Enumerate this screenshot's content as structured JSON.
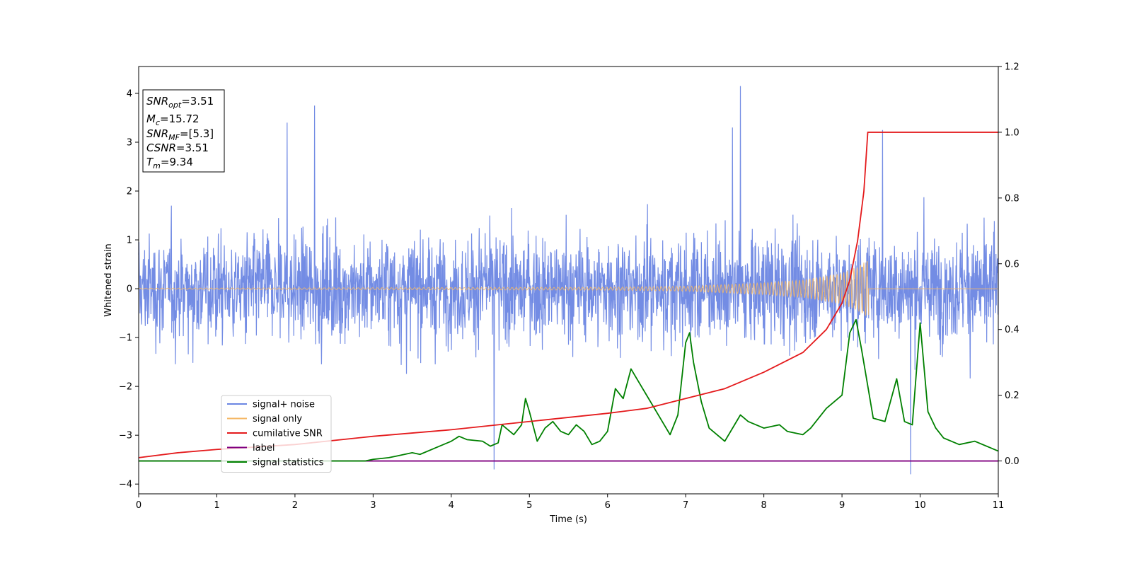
{
  "chart_data": {
    "type": "line",
    "xlabel": "Time (s)",
    "ylabel": "Whitened strain",
    "xlim": [
      0,
      11
    ],
    "ylim_left": [
      -4.2,
      4.55
    ],
    "ylim_right": [
      -0.1,
      1.2
    ],
    "x_ticks": [
      "0",
      "1",
      "2",
      "3",
      "4",
      "5",
      "6",
      "7",
      "8",
      "9",
      "10",
      "11"
    ],
    "y_ticks_left": [
      "4",
      "3",
      "2",
      "1",
      "0",
      "−1",
      "−2",
      "−3",
      "−4"
    ],
    "y_ticks_right": [
      "1.2",
      "1.0",
      "0.8",
      "0.6",
      "0.4",
      "0.2",
      "0.0"
    ],
    "grid": false,
    "legend_position": "lower-left",
    "annotation": {
      "lines": [
        {
          "sym": "SNR",
          "sub": "opt",
          "val": "=3.51"
        },
        {
          "sym": "M",
          "sub": "c",
          "val": "=15.72"
        },
        {
          "sym": "SNR",
          "sub": "MF",
          "val": "=[5.3]"
        },
        {
          "sym": "CSNR",
          "sub": "",
          "val": "=3.51"
        },
        {
          "sym": "T",
          "sub": "m",
          "val": "=9.34"
        }
      ]
    },
    "series": [
      {
        "name": "signal+ noise",
        "color": "#6b86e3",
        "axis": "left",
        "typical_range": [
          -1.8,
          1.8
        ],
        "notable_peaks": [
          [
            1.9,
            3.4
          ],
          [
            2.25,
            3.75
          ],
          [
            7.7,
            4.15
          ],
          [
            7.6,
            3.3
          ],
          [
            9.52,
            3.25
          ],
          [
            4.55,
            -3.7
          ],
          [
            9.88,
            -3.8
          ]
        ]
      },
      {
        "name": "signal only",
        "color": "#f5b766",
        "axis": "left",
        "envelope": [
          [
            0,
            0.01
          ],
          [
            6,
            0.03
          ],
          [
            7,
            0.05
          ],
          [
            8,
            0.12
          ],
          [
            8.5,
            0.18
          ],
          [
            9,
            0.32
          ],
          [
            9.2,
            0.45
          ],
          [
            9.34,
            0.6
          ]
        ]
      },
      {
        "name": "cumilative SNR",
        "color": "#e41a1c",
        "axis": "right",
        "points": [
          [
            0,
            0.01
          ],
          [
            0.5,
            0.025
          ],
          [
            1,
            0.035
          ],
          [
            2,
            0.05
          ],
          [
            3,
            0.075
          ],
          [
            4,
            0.095
          ],
          [
            5,
            0.12
          ],
          [
            6,
            0.145
          ],
          [
            6.5,
            0.16
          ],
          [
            7,
            0.19
          ],
          [
            7.5,
            0.22
          ],
          [
            8,
            0.27
          ],
          [
            8.5,
            0.33
          ],
          [
            8.8,
            0.4
          ],
          [
            9,
            0.48
          ],
          [
            9.1,
            0.55
          ],
          [
            9.2,
            0.67
          ],
          [
            9.28,
            0.82
          ],
          [
            9.33,
            1.0
          ],
          [
            11,
            1.0
          ]
        ]
      },
      {
        "name": "label",
        "color": "#800080",
        "axis": "right",
        "points": [
          [
            0,
            0.0
          ],
          [
            11,
            0.0
          ]
        ]
      },
      {
        "name": "signal statistics",
        "color": "#008000",
        "axis": "right",
        "points": [
          [
            0,
            0.0
          ],
          [
            2.5,
            0.0
          ],
          [
            2.9,
            0.0
          ],
          [
            3.0,
            0.005
          ],
          [
            3.2,
            0.01
          ],
          [
            3.3,
            0.015
          ],
          [
            3.5,
            0.025
          ],
          [
            3.6,
            0.02
          ],
          [
            3.8,
            0.04
          ],
          [
            4.0,
            0.06
          ],
          [
            4.1,
            0.075
          ],
          [
            4.2,
            0.065
          ],
          [
            4.4,
            0.06
          ],
          [
            4.5,
            0.045
          ],
          [
            4.6,
            0.055
          ],
          [
            4.65,
            0.11
          ],
          [
            4.8,
            0.08
          ],
          [
            4.9,
            0.11
          ],
          [
            4.95,
            0.19
          ],
          [
            5.0,
            0.15
          ],
          [
            5.1,
            0.06
          ],
          [
            5.2,
            0.1
          ],
          [
            5.3,
            0.12
          ],
          [
            5.4,
            0.09
          ],
          [
            5.5,
            0.08
          ],
          [
            5.6,
            0.11
          ],
          [
            5.7,
            0.09
          ],
          [
            5.8,
            0.05
          ],
          [
            5.9,
            0.06
          ],
          [
            6.0,
            0.09
          ],
          [
            6.1,
            0.22
          ],
          [
            6.2,
            0.19
          ],
          [
            6.3,
            0.28
          ],
          [
            6.4,
            0.24
          ],
          [
            6.5,
            0.2
          ],
          [
            6.6,
            0.16
          ],
          [
            6.7,
            0.12
          ],
          [
            6.8,
            0.08
          ],
          [
            6.9,
            0.14
          ],
          [
            7.0,
            0.36
          ],
          [
            7.05,
            0.39
          ],
          [
            7.1,
            0.3
          ],
          [
            7.2,
            0.18
          ],
          [
            7.3,
            0.1
          ],
          [
            7.5,
            0.06
          ],
          [
            7.7,
            0.14
          ],
          [
            7.8,
            0.12
          ],
          [
            8.0,
            0.1
          ],
          [
            8.2,
            0.11
          ],
          [
            8.3,
            0.09
          ],
          [
            8.5,
            0.08
          ],
          [
            8.6,
            0.1
          ],
          [
            8.8,
            0.16
          ],
          [
            9.0,
            0.2
          ],
          [
            9.1,
            0.39
          ],
          [
            9.18,
            0.43
          ],
          [
            9.25,
            0.34
          ],
          [
            9.4,
            0.13
          ],
          [
            9.55,
            0.12
          ],
          [
            9.7,
            0.25
          ],
          [
            9.8,
            0.12
          ],
          [
            9.9,
            0.11
          ],
          [
            10.0,
            0.42
          ],
          [
            10.1,
            0.15
          ],
          [
            10.2,
            0.1
          ],
          [
            10.3,
            0.07
          ],
          [
            10.5,
            0.05
          ],
          [
            10.7,
            0.06
          ],
          [
            10.9,
            0.04
          ],
          [
            11.0,
            0.03
          ]
        ]
      }
    ]
  }
}
